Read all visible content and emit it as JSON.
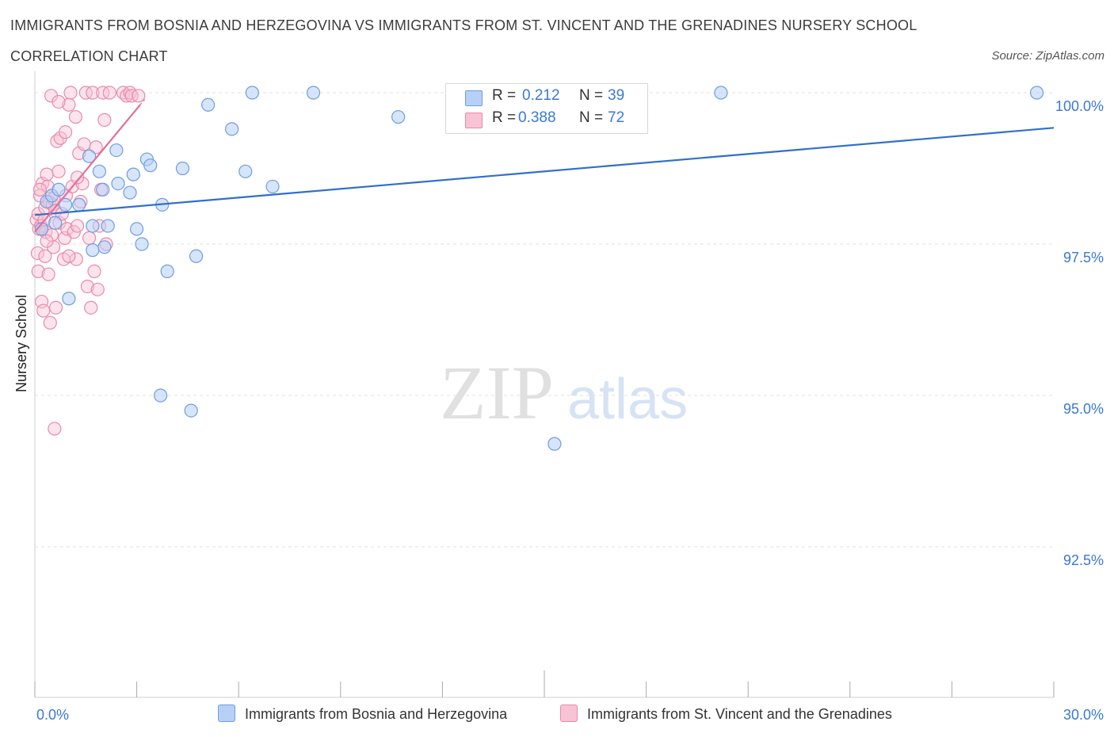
{
  "title_line1": "IMMIGRANTS FROM BOSNIA AND HERZEGOVINA VS IMMIGRANTS FROM ST. VINCENT AND THE GRENADINES NURSERY SCHOOL",
  "title_line2": "CORRELATION CHART",
  "source": "Source: ZipAtlas.com",
  "watermark": {
    "zip": "ZIP",
    "atlas": "atlas"
  },
  "colors": {
    "blue_fill": "#b7d0f5",
    "blue_stroke": "#6f9de0",
    "blue_line": "#2f6fcc",
    "pink_fill": "#f8c3d4",
    "pink_stroke": "#e98aab",
    "pink_line": "#e0709a",
    "axis_text": "#3b78d6",
    "grid": "#e2e2e2"
  },
  "legend": {
    "rows": [
      {
        "r_label": "R =",
        "r_value": "0.212",
        "n_label": "N =",
        "n_value": "39"
      },
      {
        "r_label": "R =",
        "r_value": "0.388",
        "n_label": "N =",
        "n_value": "72"
      }
    ]
  },
  "bottom_legend": {
    "series1": "Immigrants from Bosnia and Herzegovina",
    "series2": "Immigrants from St. Vincent and the Grenadines"
  },
  "chart_data": {
    "type": "scatter",
    "title": "IMMIGRANTS FROM BOSNIA AND HERZEGOVINA VS IMMIGRANTS FROM ST. VINCENT AND THE GRENADINES NURSERY SCHOOL CORRELATION CHART",
    "xlabel": "",
    "ylabel": "Nursery School",
    "xlim": [
      0,
      30
    ],
    "ylim": [
      90.0,
      100.2
    ],
    "x_tick_labels": [
      "0.0%",
      "30.0%"
    ],
    "y_ticks": [
      100.0,
      97.5,
      95.0,
      92.5
    ],
    "y_tick_labels": [
      "100.0%",
      "97.5%",
      "95.0%",
      "92.5%"
    ],
    "series": [
      {
        "name": "Immigrants from Bosnia and Herzegovina",
        "color": "blue",
        "R": 0.212,
        "N": 39,
        "trend": {
          "x0": 0.0,
          "y0": 97.98,
          "x1": 30.0,
          "y1": 99.42
        },
        "points": [
          [
            0.2,
            97.75
          ],
          [
            0.35,
            98.2
          ],
          [
            0.5,
            98.3
          ],
          [
            0.6,
            97.85
          ],
          [
            0.7,
            98.4
          ],
          [
            0.9,
            98.15
          ],
          [
            1.0,
            96.6
          ],
          [
            1.3,
            98.15
          ],
          [
            1.6,
            98.95
          ],
          [
            1.7,
            97.8
          ],
          [
            1.7,
            97.4
          ],
          [
            1.9,
            98.7
          ],
          [
            2.0,
            98.4
          ],
          [
            2.05,
            97.45
          ],
          [
            2.15,
            97.8
          ],
          [
            2.4,
            99.05
          ],
          [
            2.45,
            98.5
          ],
          [
            2.8,
            98.35
          ],
          [
            2.9,
            98.65
          ],
          [
            3.0,
            97.75
          ],
          [
            3.15,
            97.5
          ],
          [
            3.3,
            98.9
          ],
          [
            3.4,
            98.8
          ],
          [
            3.7,
            95.0
          ],
          [
            3.75,
            98.15
          ],
          [
            3.9,
            97.05
          ],
          [
            4.35,
            98.75
          ],
          [
            4.6,
            94.75
          ],
          [
            4.75,
            97.3
          ],
          [
            5.1,
            99.8
          ],
          [
            5.8,
            99.4
          ],
          [
            6.2,
            98.7
          ],
          [
            6.4,
            100.0
          ],
          [
            7.0,
            98.45
          ],
          [
            8.2,
            100.0
          ],
          [
            10.7,
            99.6
          ],
          [
            15.3,
            94.2
          ],
          [
            20.2,
            100.0
          ],
          [
            29.5,
            100.0
          ]
        ]
      },
      {
        "name": "Immigrants from St. Vincent and the Grenadines",
        "color": "pink",
        "R": 0.388,
        "N": 72,
        "trend": {
          "x0": 0.0,
          "y0": 97.7,
          "x1": 3.1,
          "y1": 99.8
        },
        "points": [
          [
            0.05,
            97.9
          ],
          [
            0.08,
            97.35
          ],
          [
            0.1,
            97.05
          ],
          [
            0.1,
            98.0
          ],
          [
            0.12,
            97.75
          ],
          [
            0.15,
            98.3
          ],
          [
            0.18,
            97.8
          ],
          [
            0.2,
            96.55
          ],
          [
            0.22,
            98.5
          ],
          [
            0.25,
            96.4
          ],
          [
            0.28,
            97.9
          ],
          [
            0.3,
            98.1
          ],
          [
            0.3,
            97.3
          ],
          [
            0.32,
            97.7
          ],
          [
            0.35,
            98.65
          ],
          [
            0.38,
            98.45
          ],
          [
            0.4,
            97.0
          ],
          [
            0.42,
            98.2
          ],
          [
            0.45,
            96.2
          ],
          [
            0.48,
            99.95
          ],
          [
            0.5,
            97.65
          ],
          [
            0.52,
            98.15
          ],
          [
            0.55,
            97.45
          ],
          [
            0.58,
            94.45
          ],
          [
            0.6,
            98.05
          ],
          [
            0.62,
            96.45
          ],
          [
            0.65,
            99.2
          ],
          [
            0.7,
            98.7
          ],
          [
            0.72,
            97.85
          ],
          [
            0.75,
            99.25
          ],
          [
            0.8,
            98.0
          ],
          [
            0.85,
            97.25
          ],
          [
            0.88,
            97.6
          ],
          [
            0.9,
            99.35
          ],
          [
            0.92,
            98.3
          ],
          [
            0.95,
            97.75
          ],
          [
            1.0,
            99.8
          ],
          [
            1.05,
            100.0
          ],
          [
            1.1,
            98.45
          ],
          [
            1.15,
            97.7
          ],
          [
            1.2,
            99.6
          ],
          [
            1.22,
            97.25
          ],
          [
            1.25,
            97.8
          ],
          [
            1.3,
            99.0
          ],
          [
            1.35,
            98.2
          ],
          [
            1.4,
            98.5
          ],
          [
            1.45,
            99.15
          ],
          [
            1.5,
            100.0
          ],
          [
            1.55,
            96.8
          ],
          [
            1.6,
            97.6
          ],
          [
            1.65,
            96.45
          ],
          [
            1.7,
            100.0
          ],
          [
            1.75,
            97.05
          ],
          [
            1.8,
            99.1
          ],
          [
            1.85,
            96.75
          ],
          [
            1.9,
            97.8
          ],
          [
            1.95,
            98.4
          ],
          [
            2.0,
            100.0
          ],
          [
            2.05,
            99.55
          ],
          [
            2.1,
            97.5
          ],
          [
            2.2,
            100.0
          ],
          [
            2.6,
            100.0
          ],
          [
            2.7,
            99.95
          ],
          [
            2.8,
            100.0
          ],
          [
            2.85,
            99.95
          ],
          [
            3.05,
            99.95
          ],
          [
            0.15,
            98.4
          ],
          [
            0.35,
            97.55
          ],
          [
            0.55,
            98.25
          ],
          [
            0.7,
            99.85
          ],
          [
            1.0,
            97.3
          ],
          [
            1.25,
            98.6
          ]
        ]
      }
    ],
    "grid": true,
    "legend_position": "top-center"
  }
}
